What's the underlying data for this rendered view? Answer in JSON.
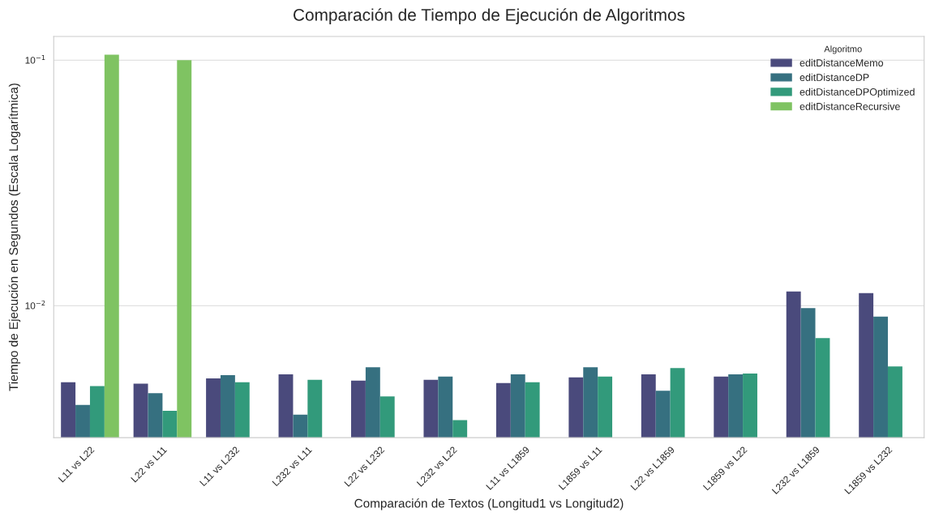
{
  "chart_data": {
    "type": "bar",
    "title": "Comparación de Tiempo de Ejecución de Algoritmos",
    "xlabel": "Comparación de Textos (Longitud1 vs Longitud2)",
    "ylabel": "Tiempo de Ejecución en Segundos (Escala Logarítmica)",
    "legend_title": "Algoritmo",
    "categories": [
      "L11 vs L22",
      "L22 vs L11",
      "L11 vs L232",
      "L232 vs L11",
      "L22 vs L232",
      "L232 vs L22",
      "L11 vs L1859",
      "L1859 vs L11",
      "L22 vs L1859",
      "L1859 vs L22",
      "L232 vs L1859",
      "L1859 vs L232"
    ],
    "series": [
      {
        "name": "editDistanceMemo",
        "color": "#4a4a7c",
        "values": [
          0.00488,
          0.00481,
          0.00506,
          0.00525,
          0.00495,
          0.00499,
          0.00484,
          0.0051,
          0.00525,
          0.00514,
          0.01143,
          0.01126
        ]
      },
      {
        "name": "editDistanceDP",
        "color": "#367080",
        "values": [
          0.00394,
          0.0044,
          0.00521,
          0.0036,
          0.00561,
          0.00514,
          0.00525,
          0.00561,
          0.0045,
          0.00525,
          0.00978,
          0.00902
        ]
      },
      {
        "name": "editDistanceDPOptimized",
        "color": "#329a7b",
        "values": [
          0.0047,
          0.00373,
          0.00488,
          0.00499,
          0.00427,
          0.00342,
          0.00488,
          0.00514,
          0.00557,
          0.00529,
          0.00738,
          0.00565
        ]
      },
      {
        "name": "editDistanceRecursive",
        "color": "#7fc362",
        "values": [
          0.1053,
          0.1,
          null,
          null,
          null,
          null,
          null,
          null,
          null,
          null,
          null,
          null
        ]
      }
    ],
    "log": "y",
    "ylim": [
      0.0029,
      0.1249
    ],
    "yticks": [
      {
        "value": 0.01,
        "label": "10$^{−2}$"
      },
      {
        "value": 0.1,
        "label": "10$^{−1}$"
      }
    ],
    "grid": "y",
    "legend": "top right"
  }
}
